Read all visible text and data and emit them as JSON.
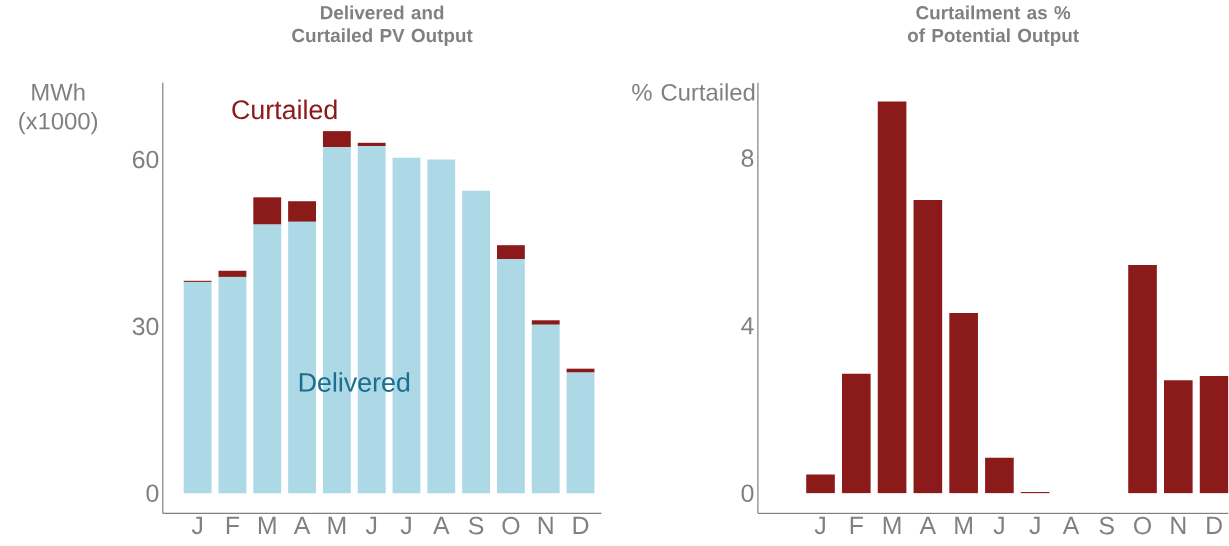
{
  "chart_data": [
    {
      "type": "bar",
      "title": "Delivered and Curtailed PV Output",
      "ylabel": "MWh (x1000)",
      "stacked": true,
      "categories": [
        "J",
        "F",
        "M",
        "A",
        "M",
        "J",
        "J",
        "A",
        "S",
        "O",
        "N",
        "D"
      ],
      "series": [
        {
          "name": "Delivered",
          "color": "#add8e6",
          "values": [
            38.0,
            38.9,
            48.3,
            48.8,
            62.2,
            62.4,
            60.3,
            60.0,
            54.4,
            42.1,
            30.3,
            21.7
          ]
        },
        {
          "name": "Curtailed",
          "color": "#8b1a1a",
          "values": [
            0.2,
            1.1,
            4.9,
            3.7,
            2.9,
            0.6,
            0,
            0,
            0,
            2.5,
            0.8,
            0.7
          ]
        }
      ],
      "ylim": [
        -3.6,
        73.8
      ],
      "yticks": [
        0,
        30,
        60
      ],
      "grid": false
    },
    {
      "type": "bar",
      "title": "Curtailment as % of Potential Output",
      "ylabel": "% Curtailed",
      "categories": [
        "J",
        "F",
        "M",
        "A",
        "M",
        "J",
        "J",
        "A",
        "S",
        "O",
        "N",
        "D"
      ],
      "values": [
        0.45,
        2.85,
        9.35,
        7.0,
        4.3,
        0.85,
        0.03,
        0,
        0,
        5.45,
        2.7,
        2.8
      ],
      "color": "#8b1a1a",
      "ylim": [
        -0.48,
        9.8
      ],
      "yticks": [
        0,
        4,
        8
      ],
      "grid": false
    }
  ]
}
